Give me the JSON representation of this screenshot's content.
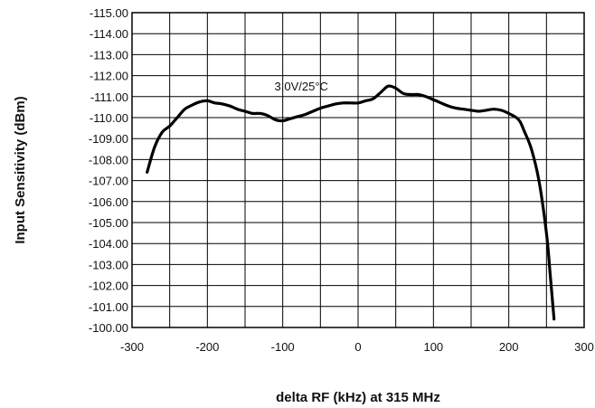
{
  "chart_data": {
    "type": "line",
    "title": "",
    "xlabel": "delta RF (kHz) at 315 MHz",
    "ylabel": "Input Sensitivity (dBm)",
    "xlim": [
      -300,
      300
    ],
    "ylim": [
      -100,
      -115
    ],
    "x_ticks": [
      -300,
      -200,
      -100,
      0,
      100,
      200,
      300
    ],
    "x_tick_labels": [
      "-300",
      "-200",
      "-100",
      "0",
      "100",
      "200",
      "300"
    ],
    "y_ticks": [
      -115,
      -114,
      -113,
      -112,
      -111,
      -110,
      -109,
      -108,
      -107,
      -106,
      -105,
      -104,
      -103,
      -102,
      -101,
      -100
    ],
    "y_tick_labels": [
      "-115.00",
      "-114.00",
      "-113.00",
      "-112.00",
      "-111.00",
      "-110.00",
      "-109.00",
      "-108.00",
      "-107.00",
      "-106.00",
      "-105.00",
      "-104.00",
      "-103.00",
      "-102.00",
      "-101.00",
      "-100.00"
    ],
    "grid": true,
    "annotation": {
      "text": "3.0V/25°C",
      "x": -45,
      "y": -111.5
    },
    "series": [
      {
        "x": [
          -280,
          -270,
          -260,
          -250,
          -240,
          -230,
          -220,
          -210,
          -200,
          -190,
          -180,
          -170,
          -160,
          -150,
          -140,
          -130,
          -120,
          -110,
          -100,
          -90,
          -80,
          -70,
          -60,
          -50,
          -40,
          -30,
          -20,
          -10,
          0,
          10,
          20,
          30,
          40,
          50,
          60,
          70,
          80,
          90,
          100,
          110,
          120,
          130,
          140,
          150,
          160,
          170,
          180,
          190,
          200,
          210,
          215,
          220,
          230,
          240,
          250,
          255,
          260
        ],
        "y": [
          -107.4,
          -108.6,
          -109.3,
          -109.6,
          -110.0,
          -110.4,
          -110.6,
          -110.75,
          -110.8,
          -110.7,
          -110.65,
          -110.55,
          -110.4,
          -110.3,
          -110.2,
          -110.2,
          -110.1,
          -109.9,
          -109.85,
          -109.95,
          -110.05,
          -110.15,
          -110.3,
          -110.45,
          -110.55,
          -110.65,
          -110.7,
          -110.7,
          -110.7,
          -110.8,
          -110.9,
          -111.2,
          -111.5,
          -111.4,
          -111.15,
          -111.1,
          -111.1,
          -111.0,
          -110.85,
          -110.7,
          -110.55,
          -110.45,
          -110.4,
          -110.35,
          -110.3,
          -110.35,
          -110.4,
          -110.35,
          -110.2,
          -110.0,
          -109.8,
          -109.4,
          -108.5,
          -107.0,
          -104.5,
          -102.5,
          -100.4
        ]
      }
    ]
  }
}
